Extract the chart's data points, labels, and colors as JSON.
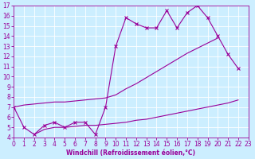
{
  "bg_color": "#cceeff",
  "line_color": "#990099",
  "x_vals": [
    0,
    1,
    2,
    3,
    4,
    5,
    6,
    7,
    8,
    9,
    10,
    11,
    12,
    13,
    14,
    15,
    16,
    17,
    18,
    19,
    20,
    21,
    22,
    23
  ],
  "line1_y": [
    7.0,
    5.0,
    4.3,
    5.2,
    5.5,
    5.0,
    5.5,
    5.5,
    4.3,
    7.0,
    13.0,
    15.8,
    15.2,
    14.8,
    14.8,
    16.5,
    14.8,
    16.3,
    17.0,
    15.8,
    14.0,
    12.2,
    10.8,
    null
  ],
  "line2_y": [
    7.0,
    7.2,
    7.3,
    7.4,
    7.5,
    7.5,
    7.6,
    7.7,
    7.8,
    7.9,
    8.2,
    8.8,
    9.3,
    9.9,
    10.5,
    11.1,
    11.7,
    12.3,
    12.8,
    13.3,
    13.8,
    null,
    null,
    null
  ],
  "line3_y": [
    null,
    null,
    4.3,
    4.8,
    5.0,
    5.0,
    5.1,
    5.2,
    5.2,
    5.3,
    5.4,
    5.5,
    5.7,
    5.8,
    6.0,
    6.2,
    6.4,
    6.6,
    6.8,
    7.0,
    7.2,
    7.4,
    7.7,
    null
  ],
  "ylim_min": 4,
  "ylim_max": 17,
  "xlim_min": 0,
  "xlim_max": 23,
  "yticks": [
    4,
    5,
    6,
    7,
    8,
    9,
    10,
    11,
    12,
    13,
    14,
    15,
    16,
    17
  ],
  "xticks": [
    0,
    1,
    2,
    3,
    4,
    5,
    6,
    7,
    8,
    9,
    10,
    11,
    12,
    13,
    14,
    15,
    16,
    17,
    18,
    19,
    20,
    21,
    22,
    23
  ],
  "xlabel": "Windchill (Refroidissement éolien,°C)",
  "tick_fontsize": 5.5,
  "label_fontsize": 5.5,
  "lw1": 0.8,
  "lw2": 0.8,
  "lw3": 0.8,
  "ms": 2.5
}
